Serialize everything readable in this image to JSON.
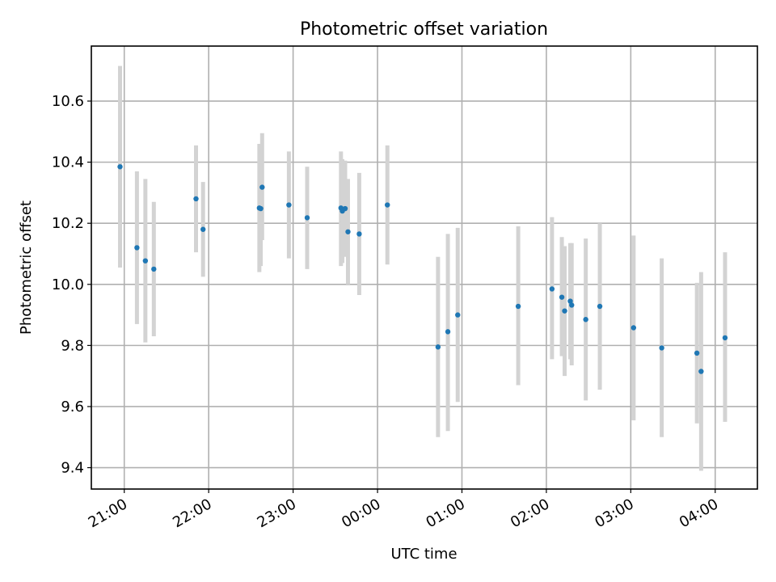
{
  "chart_data": {
    "type": "scatter",
    "title": "Photometric offset variation",
    "xlabel": "UTC time",
    "ylabel": "Photometric offset",
    "x_tick_labels": [
      "21:00",
      "22:00",
      "23:00",
      "00:00",
      "01:00",
      "02:00",
      "03:00",
      "04:00"
    ],
    "x_tick_hours": [
      21,
      22,
      23,
      24,
      25,
      26,
      27,
      28
    ],
    "xlim_hours": [
      20.61,
      28.5
    ],
    "ylim": [
      9.33,
      10.78
    ],
    "y_ticks": [
      9.4,
      9.6,
      9.8,
      10.0,
      10.2,
      10.4,
      10.6
    ],
    "grid": true,
    "point_color": "#1f77b4",
    "errorbar_color": "#d3d3d3",
    "points": [
      {
        "t": "20:57",
        "y": 10.385,
        "lo": 10.055,
        "hi": 10.715
      },
      {
        "t": "21:09",
        "y": 10.12,
        "lo": 9.87,
        "hi": 10.37
      },
      {
        "t": "21:15",
        "y": 10.077,
        "lo": 9.81,
        "hi": 10.345
      },
      {
        "t": "21:21",
        "y": 10.05,
        "lo": 9.83,
        "hi": 10.27
      },
      {
        "t": "21:51",
        "y": 10.28,
        "lo": 10.105,
        "hi": 10.455
      },
      {
        "t": "21:56",
        "y": 10.18,
        "lo": 10.025,
        "hi": 10.335
      },
      {
        "t": "22:36",
        "y": 10.25,
        "lo": 10.04,
        "hi": 10.46
      },
      {
        "t": "22:37",
        "y": 10.248,
        "lo": 10.06,
        "hi": 10.44
      },
      {
        "t": "22:38",
        "y": 10.318,
        "lo": 10.145,
        "hi": 10.495
      },
      {
        "t": "22:57",
        "y": 10.26,
        "lo": 10.085,
        "hi": 10.435
      },
      {
        "t": "23:10",
        "y": 10.218,
        "lo": 10.05,
        "hi": 10.385
      },
      {
        "t": "23:34",
        "y": 10.25,
        "lo": 10.06,
        "hi": 10.435
      },
      {
        "t": "23:35",
        "y": 10.24,
        "lo": 10.07,
        "hi": 10.41
      },
      {
        "t": "23:37",
        "y": 10.248,
        "lo": 10.09,
        "hi": 10.405
      },
      {
        "t": "23:39",
        "y": 10.172,
        "lo": 10.0,
        "hi": 10.345
      },
      {
        "t": "23:47",
        "y": 10.165,
        "lo": 9.965,
        "hi": 10.365
      },
      {
        "t": "00:07",
        "y": 10.26,
        "lo": 10.065,
        "hi": 10.455
      },
      {
        "t": "00:43",
        "y": 9.795,
        "lo": 9.5,
        "hi": 10.09
      },
      {
        "t": "00:50",
        "y": 9.845,
        "lo": 9.52,
        "hi": 10.165
      },
      {
        "t": "00:57",
        "y": 9.9,
        "lo": 9.615,
        "hi": 10.185
      },
      {
        "t": "01:40",
        "y": 9.928,
        "lo": 9.67,
        "hi": 10.19
      },
      {
        "t": "02:04",
        "y": 9.985,
        "lo": 9.755,
        "hi": 10.22
      },
      {
        "t": "02:11",
        "y": 9.958,
        "lo": 9.765,
        "hi": 10.155
      },
      {
        "t": "02:13",
        "y": 9.913,
        "lo": 9.7,
        "hi": 10.125
      },
      {
        "t": "02:17",
        "y": 9.945,
        "lo": 9.755,
        "hi": 10.135
      },
      {
        "t": "02:18",
        "y": 9.932,
        "lo": 9.735,
        "hi": 10.135
      },
      {
        "t": "02:28",
        "y": 9.885,
        "lo": 9.62,
        "hi": 10.15
      },
      {
        "t": "02:38",
        "y": 9.928,
        "lo": 9.655,
        "hi": 10.2
      },
      {
        "t": "03:02",
        "y": 9.858,
        "lo": 9.555,
        "hi": 10.16
      },
      {
        "t": "03:22",
        "y": 9.792,
        "lo": 9.5,
        "hi": 10.085
      },
      {
        "t": "03:47",
        "y": 9.775,
        "lo": 9.545,
        "hi": 10.005
      },
      {
        "t": "03:50",
        "y": 9.715,
        "lo": 9.39,
        "hi": 10.04
      },
      {
        "t": "04:07",
        "y": 9.825,
        "lo": 9.55,
        "hi": 10.105
      }
    ]
  }
}
